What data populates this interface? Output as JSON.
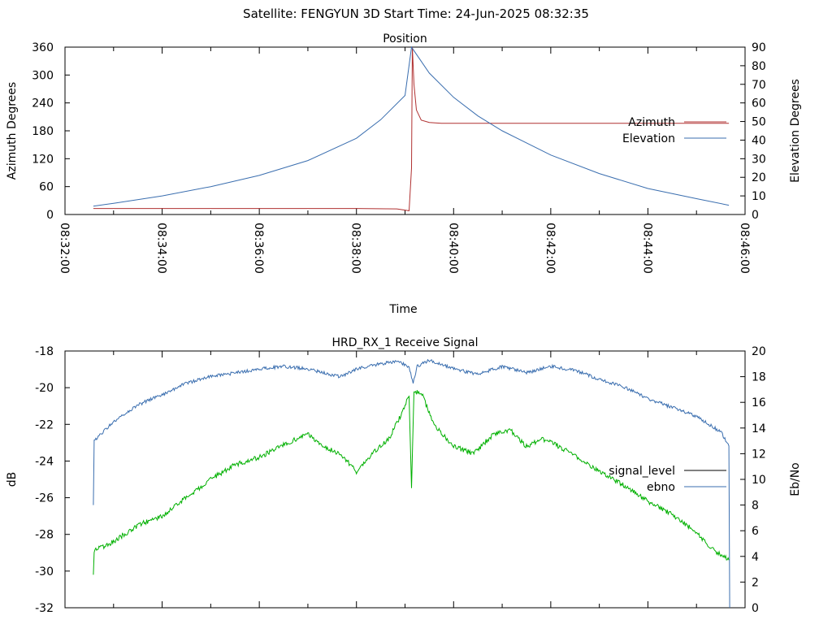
{
  "header": {
    "satellite_label": "Satellite: FENGYUN 3D",
    "start_time_label": "Start Time: 24-Jun-2025 08:32:35"
  },
  "chart_data": [
    {
      "id": "position",
      "type": "line",
      "title": "Position",
      "xlabel": "Time",
      "ylabel_left": "Azimuth Degrees",
      "ylabel_right": "Elevation Degrees",
      "xlim": [
        "08:32:00",
        "08:46:00"
      ],
      "ylim_left": [
        0,
        360
      ],
      "ylim_right": [
        0,
        90
      ],
      "x_ticks": [
        "08:32:00",
        "08:34:00",
        "08:36:00",
        "08:38:00",
        "08:40:00",
        "08:42:00",
        "08:44:00",
        "08:46:00"
      ],
      "y_ticks_left": [
        0,
        60,
        120,
        180,
        240,
        300,
        360
      ],
      "y_ticks_right": [
        0,
        10,
        20,
        30,
        40,
        50,
        60,
        70,
        80,
        90
      ],
      "legend_position": "right",
      "series": [
        {
          "name": "Azimuth",
          "axis": "left",
          "color": "#b03030",
          "x": [
            "08:32:35",
            "08:34:00",
            "08:36:00",
            "08:38:00",
            "08:38:50",
            "08:39:05",
            "08:39:08",
            "08:39:09",
            "08:39:11",
            "08:39:14",
            "08:39:20",
            "08:39:30",
            "08:39:45",
            "08:40:00",
            "08:42:00",
            "08:44:00",
            "08:45:40"
          ],
          "values": [
            13,
            13,
            13,
            13,
            12,
            8,
            100,
            360,
            280,
            225,
            203,
            198,
            196,
            196,
            196,
            196,
            196
          ]
        },
        {
          "name": "Elevation",
          "axis": "right",
          "color": "#3a6eaf",
          "x": [
            "08:32:35",
            "08:33:00",
            "08:34:00",
            "08:35:00",
            "08:36:00",
            "08:37:00",
            "08:38:00",
            "08:38:30",
            "08:39:00",
            "08:39:08",
            "08:39:30",
            "08:40:00",
            "08:40:30",
            "08:41:00",
            "08:42:00",
            "08:43:00",
            "08:44:00",
            "08:45:00",
            "08:45:40"
          ],
          "values": [
            4.5,
            6,
            10,
            15,
            21,
            29,
            41,
            51,
            64,
            90,
            76,
            63,
            53,
            45,
            32,
            22,
            14,
            8.5,
            5
          ]
        }
      ]
    },
    {
      "id": "receive-signal",
      "type": "line",
      "title": "HRD_RX_1 Receive Signal",
      "xlabel": "",
      "ylabel_left": "dB",
      "ylabel_right": "Eb/No",
      "xlim": [
        "08:32:00",
        "08:46:00"
      ],
      "ylim_left": [
        -32,
        -18
      ],
      "ylim_right": [
        0,
        20
      ],
      "y_ticks_left": [
        -18,
        -20,
        -22,
        -24,
        -26,
        -28,
        -30,
        -32
      ],
      "y_ticks_right": [
        0,
        2,
        4,
        6,
        8,
        10,
        12,
        14,
        16,
        18,
        20
      ],
      "legend_position": "right",
      "series": [
        {
          "name": "signal_level",
          "axis": "left",
          "color": "#000000",
          "legend_only": true,
          "x": [],
          "values": []
        },
        {
          "name": "ebno",
          "axis": "right",
          "color": "#3a6eaf",
          "x": [
            "08:32:35",
            "08:32:36",
            "08:33:00",
            "08:33:30",
            "08:34:00",
            "08:34:30",
            "08:35:00",
            "08:35:30",
            "08:36:00",
            "08:36:30",
            "08:37:00",
            "08:37:20",
            "08:37:40",
            "08:38:00",
            "08:38:30",
            "08:38:50",
            "08:39:05",
            "08:39:10",
            "08:39:15",
            "08:39:30",
            "08:40:00",
            "08:40:30",
            "08:41:00",
            "08:41:30",
            "08:42:00",
            "08:42:30",
            "08:43:00",
            "08:43:30",
            "08:44:00",
            "08:44:30",
            "08:45:00",
            "08:45:30",
            "08:45:40",
            "08:45:41"
          ],
          "values": [
            8,
            13,
            14.5,
            15.8,
            16.6,
            17.5,
            18,
            18.3,
            18.6,
            18.8,
            18.6,
            18.3,
            18,
            18.6,
            19,
            19.2,
            18.8,
            17.5,
            18.8,
            19.3,
            18.6,
            18.2,
            18.8,
            18.3,
            18.8,
            18.5,
            17.8,
            17.2,
            16.3,
            15.6,
            14.9,
            13.7,
            12.6,
            0
          ]
        },
        {
          "name": "",
          "axis": "left",
          "color": "#00b000",
          "x": [
            "08:32:35",
            "08:32:36",
            "08:33:00",
            "08:33:30",
            "08:34:00",
            "08:34:30",
            "08:35:00",
            "08:35:30",
            "08:36:00",
            "08:36:30",
            "08:37:00",
            "08:37:20",
            "08:37:40",
            "08:38:00",
            "08:38:20",
            "08:38:40",
            "08:38:55",
            "08:39:05",
            "08:39:08",
            "08:39:11",
            "08:39:20",
            "08:39:35",
            "08:40:00",
            "08:40:25",
            "08:40:50",
            "08:41:10",
            "08:41:30",
            "08:41:50",
            "08:42:10",
            "08:42:30",
            "08:43:00",
            "08:43:30",
            "08:44:00",
            "08:44:30",
            "08:45:00",
            "08:45:20",
            "08:45:40"
          ],
          "values": [
            -30.2,
            -28.9,
            -28.4,
            -27.5,
            -27,
            -26,
            -25,
            -24.2,
            -23.8,
            -23.1,
            -22.5,
            -23.2,
            -23.6,
            -24.6,
            -23.6,
            -22.8,
            -21.5,
            -20.4,
            -25.5,
            -20.3,
            -20.2,
            -22,
            -23.2,
            -23.6,
            -22.5,
            -22.3,
            -23.2,
            -22.8,
            -23.2,
            -23.7,
            -24.6,
            -25.3,
            -26.2,
            -26.9,
            -27.9,
            -28.8,
            -29.4
          ]
        }
      ]
    }
  ]
}
